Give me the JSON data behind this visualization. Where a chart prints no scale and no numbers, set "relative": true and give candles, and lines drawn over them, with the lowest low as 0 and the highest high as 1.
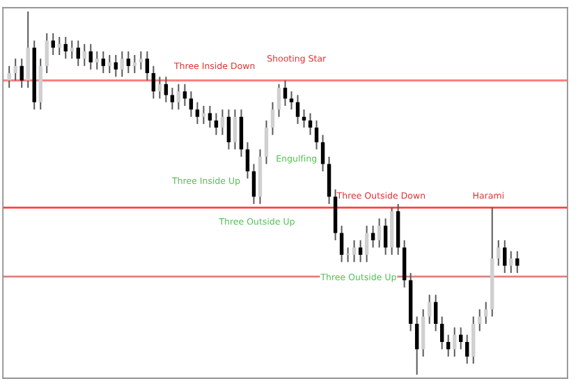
{
  "chart_data": {
    "type": "candlestick",
    "relative": true,
    "categories": [
      null,
      null,
      null,
      null,
      null,
      null,
      null,
      null,
      null,
      null,
      null,
      null,
      null,
      null,
      null,
      null,
      null,
      null,
      null,
      null,
      null,
      null,
      null,
      null,
      null,
      null,
      null,
      null,
      null,
      null,
      null,
      null,
      null,
      null,
      null,
      null,
      null,
      null,
      null,
      null,
      null,
      null,
      null,
      null,
      null,
      null,
      null,
      null,
      null,
      null,
      null,
      null,
      null,
      null,
      null,
      null,
      null,
      null,
      null,
      null,
      null,
      null,
      null,
      null,
      null,
      null,
      null,
      null,
      null,
      null,
      null,
      null,
      null,
      null,
      null,
      null,
      null,
      null,
      null,
      null,
      null,
      null
    ],
    "ohlc": [
      [
        0.81,
        0.85,
        0.79,
        0.83
      ],
      [
        0.83,
        0.87,
        0.81,
        0.85
      ],
      [
        0.85,
        0.87,
        0.79,
        0.81
      ],
      [
        0.81,
        1.0,
        0.79,
        0.9
      ],
      [
        0.9,
        0.92,
        0.73,
        0.75
      ],
      [
        0.75,
        0.87,
        0.73,
        0.85
      ],
      [
        0.85,
        0.94,
        0.83,
        0.92
      ],
      [
        0.92,
        0.94,
        0.88,
        0.9
      ],
      [
        0.9,
        0.93,
        0.88,
        0.91
      ],
      [
        0.91,
        0.93,
        0.87,
        0.89
      ],
      [
        0.89,
        0.92,
        0.87,
        0.9
      ],
      [
        0.9,
        0.92,
        0.85,
        0.87
      ],
      [
        0.87,
        0.91,
        0.85,
        0.89
      ],
      [
        0.89,
        0.91,
        0.84,
        0.86
      ],
      [
        0.86,
        0.89,
        0.84,
        0.87
      ],
      [
        0.87,
        0.89,
        0.83,
        0.85
      ],
      [
        0.85,
        0.88,
        0.83,
        0.86
      ],
      [
        0.86,
        0.88,
        0.82,
        0.84
      ],
      [
        0.84,
        0.89,
        0.82,
        0.87
      ],
      [
        0.87,
        0.89,
        0.83,
        0.85
      ],
      [
        0.85,
        0.88,
        0.83,
        0.86
      ],
      [
        0.86,
        0.89,
        0.84,
        0.87
      ],
      [
        0.87,
        0.89,
        0.81,
        0.83
      ],
      [
        0.83,
        0.85,
        0.76,
        0.78
      ],
      [
        0.78,
        0.82,
        0.76,
        0.8
      ],
      [
        0.8,
        0.82,
        0.75,
        0.77
      ],
      [
        0.77,
        0.79,
        0.73,
        0.75
      ],
      [
        0.75,
        0.8,
        0.73,
        0.78
      ],
      [
        0.78,
        0.8,
        0.74,
        0.76
      ],
      [
        0.76,
        0.78,
        0.71,
        0.73
      ],
      [
        0.73,
        0.75,
        0.69,
        0.71
      ],
      [
        0.71,
        0.74,
        0.69,
        0.72
      ],
      [
        0.72,
        0.74,
        0.68,
        0.7
      ],
      [
        0.7,
        0.72,
        0.66,
        0.68
      ],
      [
        0.68,
        0.73,
        0.66,
        0.71
      ],
      [
        0.71,
        0.73,
        0.62,
        0.64
      ],
      [
        0.64,
        0.73,
        0.62,
        0.71
      ],
      [
        0.71,
        0.73,
        0.6,
        0.62
      ],
      [
        0.62,
        0.64,
        0.54,
        0.56
      ],
      [
        0.56,
        0.58,
        0.47,
        0.49
      ],
      [
        0.49,
        0.62,
        0.47,
        0.6
      ],
      [
        0.6,
        0.7,
        0.58,
        0.68
      ],
      [
        0.68,
        0.75,
        0.66,
        0.73
      ],
      [
        0.73,
        0.8,
        0.71,
        0.79
      ],
      [
        0.79,
        0.81,
        0.74,
        0.76
      ],
      [
        0.76,
        0.78,
        0.73,
        0.75
      ],
      [
        0.75,
        0.77,
        0.69,
        0.71
      ],
      [
        0.71,
        0.73,
        0.68,
        0.7
      ],
      [
        0.7,
        0.72,
        0.66,
        0.68
      ],
      [
        0.68,
        0.7,
        0.62,
        0.64
      ],
      [
        0.64,
        0.66,
        0.56,
        0.58
      ],
      [
        0.58,
        0.6,
        0.47,
        0.49
      ],
      [
        0.49,
        0.51,
        0.37,
        0.39
      ],
      [
        0.39,
        0.41,
        0.31,
        0.33
      ],
      [
        0.33,
        0.35,
        0.31,
        0.33
      ],
      [
        0.33,
        0.37,
        0.31,
        0.35
      ],
      [
        0.35,
        0.37,
        0.31,
        0.33
      ],
      [
        0.33,
        0.41,
        0.31,
        0.39
      ],
      [
        0.39,
        0.41,
        0.35,
        0.37
      ],
      [
        0.37,
        0.43,
        0.35,
        0.41
      ],
      [
        0.41,
        0.43,
        0.33,
        0.35
      ],
      [
        0.35,
        0.46,
        0.33,
        0.45
      ],
      [
        0.45,
        0.47,
        0.33,
        0.35
      ],
      [
        0.35,
        0.37,
        0.24,
        0.26
      ],
      [
        0.26,
        0.28,
        0.12,
        0.14
      ],
      [
        0.14,
        0.16,
        0.0,
        0.07
      ],
      [
        0.07,
        0.18,
        0.05,
        0.16
      ],
      [
        0.16,
        0.22,
        0.14,
        0.2
      ],
      [
        0.2,
        0.22,
        0.12,
        0.14
      ],
      [
        0.14,
        0.16,
        0.07,
        0.09
      ],
      [
        0.09,
        0.11,
        0.05,
        0.07
      ],
      [
        0.07,
        0.13,
        0.05,
        0.11
      ],
      [
        0.11,
        0.13,
        0.07,
        0.09
      ],
      [
        0.09,
        0.11,
        0.03,
        0.05
      ],
      [
        0.05,
        0.16,
        0.03,
        0.14
      ],
      [
        0.14,
        0.18,
        0.12,
        0.16
      ],
      [
        0.16,
        0.2,
        0.14,
        0.18
      ],
      [
        0.18,
        0.46,
        0.16,
        0.32
      ],
      [
        0.32,
        0.37,
        0.3,
        0.35
      ],
      [
        0.35,
        0.37,
        0.28,
        0.3
      ],
      [
        0.3,
        0.34,
        0.28,
        0.32
      ],
      [
        0.32,
        0.34,
        0.28,
        0.3
      ]
    ],
    "ref_lines": [
      {
        "axis": "y",
        "value": 0.81,
        "color": "#ff8080"
      },
      {
        "axis": "y",
        "value": 0.46,
        "color": "#ff4040"
      },
      {
        "axis": "y",
        "value": 0.27,
        "color": "#e08080"
      }
    ],
    "annotations": [
      "Shooting Star",
      "Three Inside Down",
      "Three Inside Up",
      "Three Outside Up",
      "Engulfing",
      "Three Outside Down",
      "Three Outside Up",
      "Harami"
    ]
  }
}
